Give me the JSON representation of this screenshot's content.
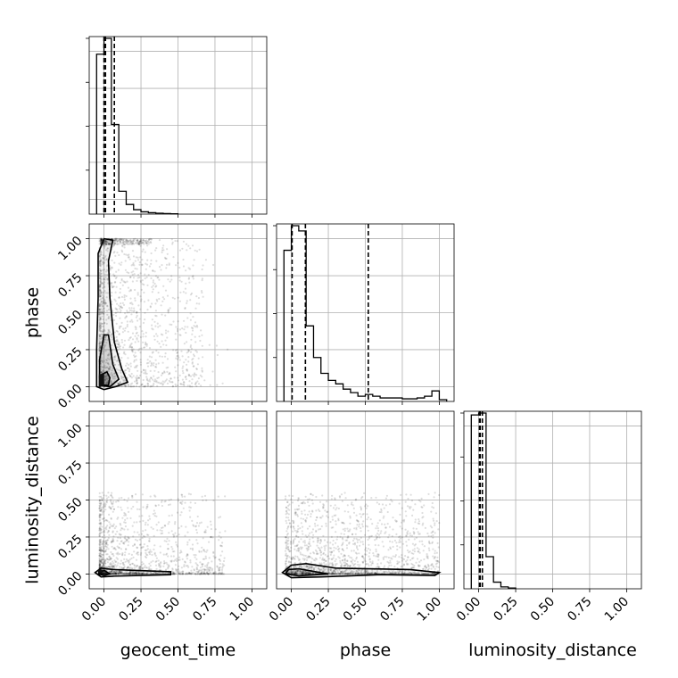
{
  "chart_data": {
    "type": "corner",
    "parameters": [
      "geocent_time",
      "phase",
      "luminosity_distance"
    ],
    "axis_range": [
      -0.1,
      1.1
    ],
    "tick_values": [
      0.0,
      0.25,
      0.5,
      0.75,
      1.0
    ],
    "tick_labels": [
      "0.00",
      "0.25",
      "0.50",
      "0.75",
      "1.00"
    ],
    "grid": true,
    "histograms": [
      {
        "parameter": "geocent_time",
        "bin_edges": [
          -0.05,
          0.0,
          0.05,
          0.1,
          0.15,
          0.2,
          0.25,
          0.3,
          0.35,
          0.4,
          0.45,
          0.5
        ],
        "counts": [
          0.91,
          1.0,
          0.51,
          0.13,
          0.055,
          0.025,
          0.013,
          0.008,
          0.005,
          0.003,
          0.002
        ],
        "quantiles": [
          0.0,
          0.01,
          0.07
        ]
      },
      {
        "parameter": "phase",
        "bin_edges": [
          -0.05,
          0.0,
          0.05,
          0.1,
          0.15,
          0.2,
          0.25,
          0.3,
          0.35,
          0.4,
          0.45,
          0.5,
          0.55,
          0.6,
          0.65,
          0.7,
          0.75,
          0.8,
          0.85,
          0.9,
          0.95,
          1.0,
          1.05
        ],
        "counts": [
          0.86,
          1.0,
          0.97,
          0.43,
          0.25,
          0.16,
          0.12,
          0.1,
          0.07,
          0.05,
          0.03,
          0.04,
          0.03,
          0.02,
          0.02,
          0.02,
          0.015,
          0.015,
          0.02,
          0.03,
          0.06,
          0.01
        ],
        "quantiles": [
          0.005,
          0.095,
          0.52
        ]
      },
      {
        "parameter": "luminosity_distance",
        "bin_edges": [
          -0.05,
          0.0,
          0.05,
          0.1,
          0.15,
          0.2,
          0.25
        ],
        "counts": [
          0.92,
          0.93,
          0.17,
          0.035,
          0.01,
          0.004
        ],
        "quantiles": [
          0.005,
          0.01,
          0.025
        ]
      }
    ],
    "scatter_panels": [
      {
        "x": "geocent_time",
        "y": "phase",
        "x_range_visible": [
          -0.05,
          1.0
        ],
        "y_range_visible": [
          0.0,
          1.0
        ]
      },
      {
        "x": "geocent_time",
        "y": "luminosity_distance",
        "x_range_visible": [
          -0.05,
          1.0
        ],
        "y_range_visible": [
          0.0,
          0.6
        ]
      },
      {
        "x": "phase",
        "y": "luminosity_distance",
        "x_range_visible": [
          -0.05,
          1.0
        ],
        "y_range_visible": [
          0.0,
          0.6
        ]
      }
    ]
  }
}
